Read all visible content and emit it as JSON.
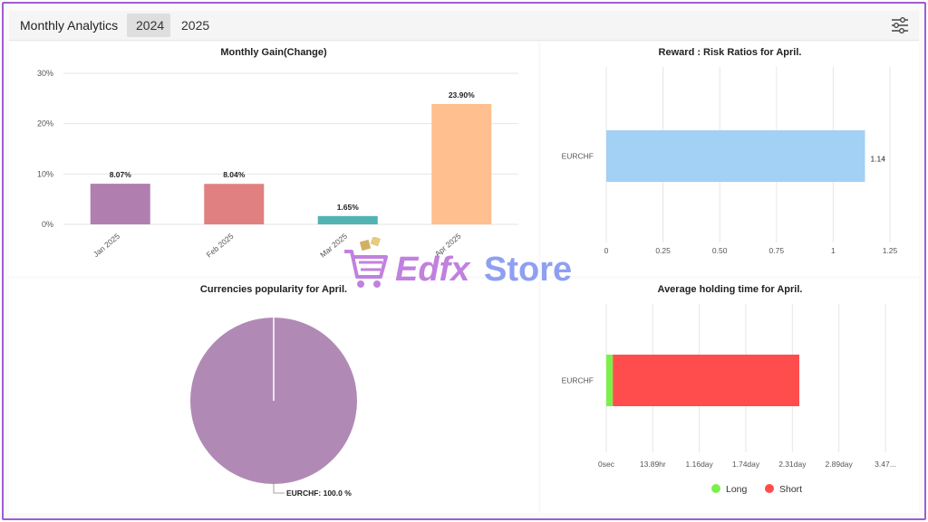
{
  "header": {
    "title": "Monthly Analytics",
    "tabs": [
      {
        "label": "2024",
        "active": true
      },
      {
        "label": "2025",
        "active": false
      }
    ],
    "settings_icon": "sliders-icon"
  },
  "colors": {
    "border": "#a05cd0",
    "long": "#7cf04a",
    "short": "#ff4d4d"
  },
  "watermark": {
    "text": "EdfxStore"
  },
  "chart_data": [
    {
      "type": "bar",
      "title": "Monthly Gain(Change)",
      "categories": [
        "Jan 2025",
        "Feb 2025",
        "Mar 2025",
        "Apr 2025"
      ],
      "values": [
        8.07,
        8.04,
        1.65,
        23.9
      ],
      "data_labels": [
        "8.07%",
        "8.04%",
        "1.65%",
        "23.90%"
      ],
      "colors": [
        "#b07fb0",
        "#e08080",
        "#52b3b3",
        "#ffbf8f"
      ],
      "ylim": [
        0,
        30
      ],
      "yticks": [
        "0%",
        "10%",
        "20%",
        "30%"
      ],
      "grid": true
    },
    {
      "type": "bar",
      "orientation": "horizontal",
      "title": "Reward : Risk Ratios for April.",
      "categories": [
        "EURCHF"
      ],
      "values": [
        1.14
      ],
      "data_labels": [
        "1.14"
      ],
      "color": "#a3d0f5",
      "xlim": [
        0,
        1.25
      ],
      "xticks": [
        "0",
        "0.25",
        "0.50",
        "0.75",
        "1",
        "1.25"
      ],
      "grid": true
    },
    {
      "type": "pie",
      "title": "Currencies popularity for April.",
      "slices": [
        {
          "label": "EURCHF",
          "value": 100.0,
          "color": "#b08ab5"
        }
      ],
      "data_labels": [
        "EURCHF: 100.0 %"
      ]
    },
    {
      "type": "bar",
      "orientation": "horizontal",
      "stacked": true,
      "title": "Average holding time for April.",
      "categories": [
        "EURCHF"
      ],
      "series": [
        {
          "name": "Long",
          "values": [
            0.081
          ],
          "color": "#7cf04a"
        },
        {
          "name": "Short",
          "values": [
            2.319
          ],
          "color": "#ff4d4d"
        }
      ],
      "x_unit": "day",
      "xlim": [
        0,
        3.47
      ],
      "xticks": [
        "0sec",
        "13.89hr",
        "1.16day",
        "1.74day",
        "2.31day",
        "2.89day",
        "3.47..."
      ],
      "legend": "bottom",
      "grid": true
    }
  ]
}
